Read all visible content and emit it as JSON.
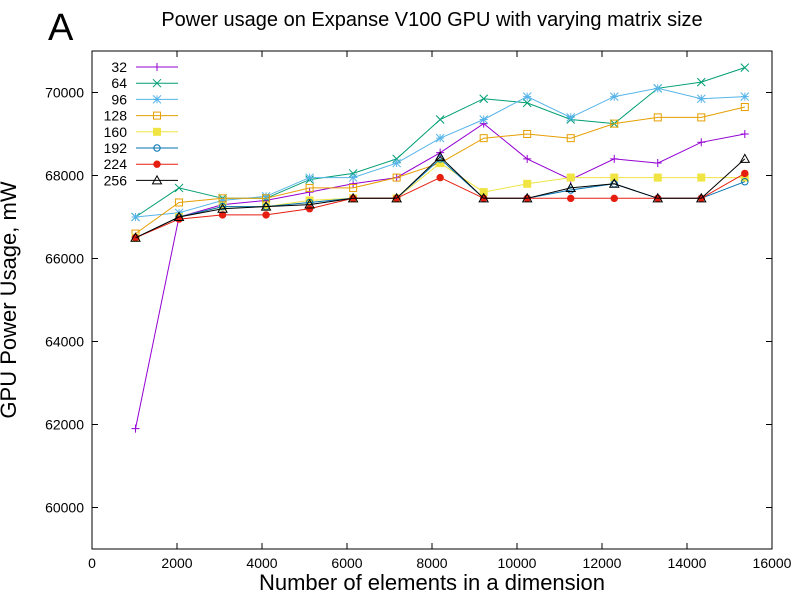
{
  "panel_label": "A",
  "chart_data": {
    "type": "line",
    "title": "Power usage on Expanse V100 GPU with varying matrix size",
    "xlabel": "Number of elements in a dimension",
    "ylabel": "GPU Power Usage, mW",
    "xlim": [
      0,
      16000
    ],
    "ylim": [
      59000,
      71000
    ],
    "xticks": [
      0,
      2000,
      4000,
      6000,
      8000,
      10000,
      12000,
      14000,
      16000
    ],
    "yticks": [
      60000,
      62000,
      64000,
      66000,
      68000,
      70000
    ],
    "grid": false,
    "legend_position": "top-left",
    "x": [
      1024,
      2048,
      3072,
      4096,
      5120,
      6144,
      7168,
      8192,
      9216,
      10240,
      11264,
      12288,
      13312,
      14336,
      15360
    ],
    "series": [
      {
        "name": "32",
        "color": "#9400d3",
        "marker": "plus",
        "values": [
          61900,
          67000,
          67300,
          67400,
          67600,
          67800,
          67950,
          68550,
          69250,
          68400,
          67900,
          68400,
          68300,
          68800,
          69000
        ]
      },
      {
        "name": "64",
        "color": "#009e73",
        "marker": "cross",
        "values": [
          67000,
          67700,
          67450,
          67450,
          67900,
          68050,
          68400,
          69350,
          69850,
          69750,
          69350,
          69250,
          70100,
          70250,
          70600
        ]
      },
      {
        "name": "96",
        "color": "#56b4e9",
        "marker": "star",
        "values": [
          67000,
          67100,
          67400,
          67500,
          67950,
          67950,
          68300,
          68900,
          69350,
          69900,
          69400,
          69900,
          70100,
          69850,
          69900
        ]
      },
      {
        "name": "128",
        "color": "#e69f00",
        "marker": "square",
        "values": [
          66600,
          67350,
          67450,
          67450,
          67700,
          67700,
          67950,
          68300,
          68900,
          69000,
          68900,
          69250,
          69400,
          69400,
          69650
        ]
      },
      {
        "name": "160",
        "color": "#f0e442",
        "marker": "filled-square",
        "values": [
          66500,
          67000,
          67250,
          67250,
          67400,
          67450,
          67450,
          68300,
          67600,
          67800,
          67950,
          67950,
          67950,
          67950,
          67950
        ]
      },
      {
        "name": "192",
        "color": "#0072b2",
        "marker": "circle",
        "values": [
          66500,
          67000,
          67250,
          67250,
          67350,
          67450,
          67450,
          68400,
          67450,
          67450,
          67650,
          67800,
          67450,
          67450,
          67850
        ]
      },
      {
        "name": "224",
        "color": "#e51e10",
        "marker": "filled-circle",
        "values": [
          66500,
          66950,
          67050,
          67050,
          67200,
          67450,
          67450,
          67950,
          67450,
          67450,
          67450,
          67450,
          67450,
          67450,
          68050
        ]
      },
      {
        "name": "256",
        "color": "#000000",
        "marker": "triangle",
        "values": [
          66500,
          67000,
          67200,
          67250,
          67300,
          67450,
          67450,
          68450,
          67450,
          67450,
          67700,
          67800,
          67450,
          67450,
          68400
        ]
      }
    ]
  }
}
